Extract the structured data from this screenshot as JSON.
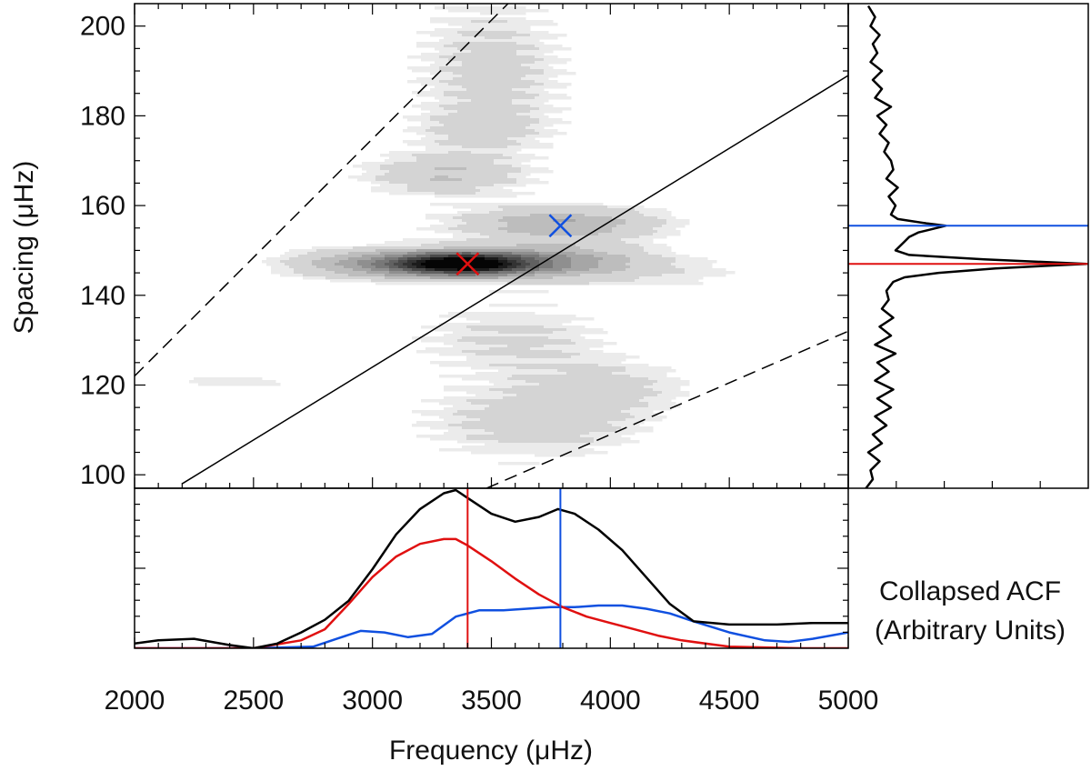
{
  "chart_data": {
    "type": "heatmap",
    "xlabel": "Frequency (μHz)",
    "ylabel": "Spacing (μHz)",
    "xlim": [
      2000,
      5000
    ],
    "ylim": [
      97,
      205
    ],
    "x_ticks": [
      "2000",
      "2500",
      "3000",
      "3500",
      "4000",
      "4500",
      "5000"
    ],
    "y_ticks": [
      "100",
      "120",
      "140",
      "160",
      "180",
      "200"
    ],
    "colors": {
      "red": "#e01010",
      "blue": "#1050e0",
      "black": "#000000",
      "heat": "#111111"
    },
    "heatmap_blobs": [
      {
        "x": 3380,
        "y": 147,
        "sx": 190,
        "sy": 1.7,
        "a": 1.0
      },
      {
        "x": 3050,
        "y": 147,
        "sx": 260,
        "sy": 2.2,
        "a": 0.35
      },
      {
        "x": 3750,
        "y": 147.5,
        "sx": 260,
        "sy": 2.6,
        "a": 0.35
      },
      {
        "x": 3800,
        "y": 156,
        "sx": 280,
        "sy": 2.5,
        "a": 0.28
      },
      {
        "x": 3300,
        "y": 167,
        "sx": 220,
        "sy": 3.0,
        "a": 0.18
      },
      {
        "x": 3500,
        "y": 190,
        "sx": 200,
        "sy": 10.0,
        "a": 0.12
      },
      {
        "x": 3600,
        "y": 130,
        "sx": 260,
        "sy": 5.0,
        "a": 0.1
      },
      {
        "x": 3700,
        "y": 112,
        "sx": 300,
        "sy": 5.0,
        "a": 0.14
      },
      {
        "x": 4000,
        "y": 120,
        "sx": 250,
        "sy": 4.0,
        "a": 0.1
      },
      {
        "x": 2400,
        "y": 121,
        "sx": 250,
        "sy": 1.8,
        "a": 0.07
      },
      {
        "x": 4300,
        "y": 145,
        "sx": 300,
        "sy": 3.0,
        "a": 0.06
      },
      {
        "x": 3450,
        "y": 177,
        "sx": 180,
        "sy": 3.0,
        "a": 0.1
      }
    ],
    "guide_lines": [
      {
        "name": "center-line",
        "style": "solid",
        "points": [
          [
            2200,
            98
          ],
          [
            5000,
            189
          ]
        ]
      },
      {
        "name": "upper-dashed-line",
        "style": "dashed",
        "points": [
          [
            2000,
            122
          ],
          [
            3570,
            205
          ]
        ]
      },
      {
        "name": "lower-dashed-line",
        "style": "dashed",
        "points": [
          [
            3480,
            97
          ],
          [
            5000,
            132
          ]
        ]
      }
    ],
    "markers": [
      {
        "name": "red-marker",
        "x": 3400,
        "y": 147,
        "color": "red"
      },
      {
        "name": "blue-marker",
        "x": 3790,
        "y": 155.5,
        "color": "blue"
      }
    ],
    "right_panel": {
      "spacing": [
        97,
        99,
        101,
        103,
        105,
        107,
        109,
        111,
        113,
        115,
        117,
        119,
        121,
        123,
        125,
        127,
        129,
        131,
        133,
        135,
        137,
        139,
        141,
        143,
        144,
        145,
        146,
        147,
        148,
        149,
        150,
        151,
        152,
        153,
        154,
        155,
        155.5,
        156,
        157,
        158,
        160,
        162,
        164,
        166,
        168,
        170,
        172,
        174,
        176,
        178,
        180,
        182,
        184,
        186,
        188,
        190,
        192,
        194,
        196,
        198,
        200,
        202,
        204.5
      ],
      "acf": [
        0.03,
        0.06,
        0.05,
        0.09,
        0.04,
        0.1,
        0.06,
        0.12,
        0.07,
        0.14,
        0.08,
        0.15,
        0.07,
        0.13,
        0.08,
        0.16,
        0.07,
        0.14,
        0.09,
        0.15,
        0.1,
        0.13,
        0.12,
        0.15,
        0.2,
        0.35,
        0.6,
        1.0,
        0.55,
        0.22,
        0.16,
        0.18,
        0.2,
        0.22,
        0.26,
        0.34,
        0.38,
        0.3,
        0.17,
        0.14,
        0.16,
        0.13,
        0.17,
        0.12,
        0.15,
        0.14,
        0.11,
        0.13,
        0.09,
        0.12,
        0.08,
        0.14,
        0.07,
        0.1,
        0.06,
        0.1,
        0.05,
        0.08,
        0.06,
        0.09,
        0.05,
        0.07,
        0.04
      ],
      "red_line_y": 147,
      "blue_line_y": 155.5
    },
    "bottom_panel": {
      "series": [
        {
          "name": "total",
          "color": "black",
          "x": [
            2000,
            2100,
            2250,
            2400,
            2500,
            2600,
            2700,
            2800,
            2900,
            3000,
            3100,
            3200,
            3300,
            3350,
            3400,
            3500,
            3600,
            3700,
            3780,
            3850,
            3950,
            4050,
            4150,
            4250,
            4350,
            4500,
            4700,
            4850,
            5000
          ],
          "y": [
            0.03,
            0.05,
            0.06,
            0.02,
            0.0,
            0.03,
            0.1,
            0.18,
            0.3,
            0.5,
            0.72,
            0.88,
            0.98,
            1.0,
            0.95,
            0.85,
            0.8,
            0.83,
            0.88,
            0.85,
            0.75,
            0.62,
            0.45,
            0.28,
            0.17,
            0.15,
            0.15,
            0.16,
            0.16
          ]
        },
        {
          "name": "red-component",
          "color": "red",
          "x": [
            2000,
            2500,
            2700,
            2800,
            2900,
            3000,
            3100,
            3200,
            3300,
            3350,
            3400,
            3500,
            3600,
            3700,
            3800,
            3900,
            4000,
            4100,
            4200,
            4300,
            4500,
            4800,
            5000
          ],
          "y": [
            0.0,
            0.0,
            0.05,
            0.12,
            0.28,
            0.45,
            0.58,
            0.66,
            0.69,
            0.69,
            0.65,
            0.55,
            0.44,
            0.34,
            0.26,
            0.2,
            0.16,
            0.12,
            0.08,
            0.05,
            0.01,
            0.0,
            0.0
          ]
        },
        {
          "name": "blue-component",
          "color": "blue",
          "x": [
            2000,
            2500,
            2750,
            2850,
            2950,
            3050,
            3150,
            3250,
            3350,
            3450,
            3550,
            3650,
            3750,
            3850,
            3950,
            4050,
            4150,
            4250,
            4350,
            4500,
            4650,
            4750,
            4850,
            5000
          ],
          "y": [
            0.0,
            0.0,
            0.01,
            0.06,
            0.11,
            0.1,
            0.07,
            0.09,
            0.2,
            0.24,
            0.24,
            0.25,
            0.26,
            0.26,
            0.27,
            0.27,
            0.25,
            0.22,
            0.17,
            0.1,
            0.05,
            0.04,
            0.06,
            0.1
          ]
        }
      ],
      "red_line_x": 3400,
      "blue_line_x": 3790
    },
    "annotation": [
      "Collapsed ACF",
      "(Arbitrary Units)"
    ]
  }
}
